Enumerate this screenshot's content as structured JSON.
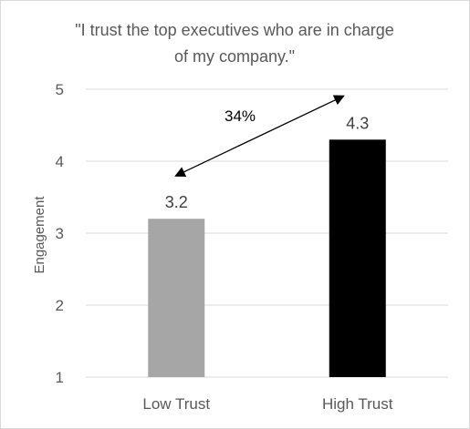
{
  "chart_data": {
    "type": "bar",
    "title_lines": [
      "\"I trust the top executives who are in charge",
      "of my company.\""
    ],
    "categories": [
      "Low Trust",
      "High Trust"
    ],
    "values": [
      3.2,
      4.3
    ],
    "data_labels": [
      "3.2",
      "4.3"
    ],
    "bar_colors": [
      "#a6a6a6",
      "#000000"
    ],
    "xlabel": "",
    "ylabel": "Engagement",
    "ylim": [
      1,
      5
    ],
    "yticks": [
      "1",
      "2",
      "3",
      "4",
      "5"
    ],
    "grid": true,
    "annotation": {
      "text": "34%",
      "type": "double-headed-arrow",
      "from_category": "Low Trust",
      "to_category": "High Trust"
    }
  }
}
